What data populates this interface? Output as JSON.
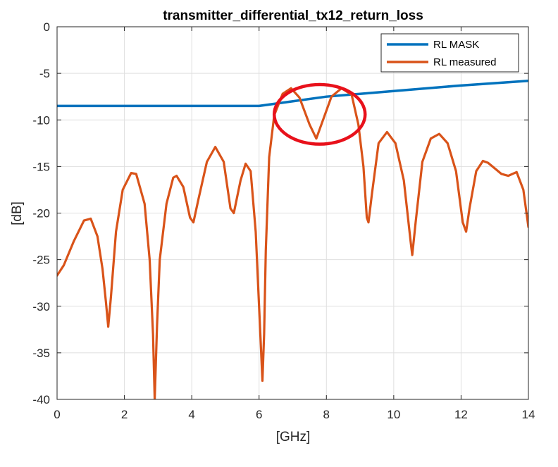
{
  "chart_data": {
    "type": "line",
    "title": "transmitter_differential_tx12_return_loss",
    "xlabel": "[GHz]",
    "ylabel": "[dB]",
    "xlim": [
      0,
      14
    ],
    "ylim": [
      -40,
      0
    ],
    "xticks": [
      "0",
      "2",
      "4",
      "6",
      "8",
      "10",
      "12",
      "14"
    ],
    "yticks": [
      "0",
      "-5",
      "-10",
      "-15",
      "-20",
      "-25",
      "-30",
      "-35",
      "-40"
    ],
    "grid": true,
    "legend_position": "top-right",
    "annotation": {
      "type": "ellipse",
      "color": "#e8111b",
      "center": [
        7.8,
        -9.4
      ],
      "radii": [
        1.35,
        3.2
      ]
    },
    "series": [
      {
        "name": "RL MASK",
        "color": "#0072bd",
        "x": [
          0,
          6,
          8,
          10,
          12,
          14
        ],
        "y": [
          -8.5,
          -8.5,
          -7.5,
          -6.9,
          -6.3,
          -5.8
        ]
      },
      {
        "name": "RL measured",
        "color": "#d95319",
        "x": [
          0,
          0.2,
          0.5,
          0.8,
          1.0,
          1.2,
          1.35,
          1.45,
          1.52,
          1.6,
          1.75,
          1.95,
          2.2,
          2.35,
          2.6,
          2.75,
          2.85,
          2.9,
          2.97,
          3.05,
          3.25,
          3.45,
          3.55,
          3.75,
          3.95,
          4.05,
          4.2,
          4.45,
          4.7,
          4.95,
          5.15,
          5.25,
          5.45,
          5.6,
          5.75,
          5.9,
          6.0,
          6.1,
          6.15,
          6.2,
          6.3,
          6.45,
          6.7,
          6.95,
          7.2,
          7.5,
          7.7,
          7.9,
          8.15,
          8.45,
          8.75,
          8.95,
          9.1,
          9.2,
          9.25,
          9.35,
          9.55,
          9.8,
          10.05,
          10.3,
          10.5,
          10.55,
          10.65,
          10.85,
          11.1,
          11.35,
          11.6,
          11.85,
          12.05,
          12.15,
          12.25,
          12.45,
          12.65,
          12.8,
          13.0,
          13.2,
          13.4,
          13.65,
          13.85,
          14.0
        ],
        "y": [
          -26.7,
          -25.6,
          -23.0,
          -20.8,
          -20.6,
          -22.5,
          -26.0,
          -29.5,
          -32.2,
          -29.0,
          -22.0,
          -17.5,
          -15.7,
          -15.8,
          -19.0,
          -25.0,
          -33.0,
          -40.0,
          -32.0,
          -25.0,
          -19.0,
          -16.2,
          -16.0,
          -17.2,
          -20.5,
          -21.0,
          -18.5,
          -14.5,
          -12.9,
          -14.5,
          -19.5,
          -20.0,
          -16.5,
          -14.7,
          -15.5,
          -22.0,
          -30.0,
          -38.0,
          -33.0,
          -24.0,
          -14.0,
          -9.5,
          -7.2,
          -6.6,
          -7.6,
          -10.5,
          -12.0,
          -10.0,
          -7.5,
          -6.6,
          -7.3,
          -10.5,
          -15.0,
          -20.5,
          -21.0,
          -18.0,
          -12.5,
          -11.3,
          -12.5,
          -16.5,
          -23.0,
          -24.5,
          -21.0,
          -14.5,
          -12.0,
          -11.5,
          -12.5,
          -15.5,
          -21.0,
          -22.0,
          -19.5,
          -15.5,
          -14.4,
          -14.6,
          -15.2,
          -15.8,
          -16.0,
          -15.6,
          -17.5,
          -21.5
        ]
      }
    ]
  }
}
